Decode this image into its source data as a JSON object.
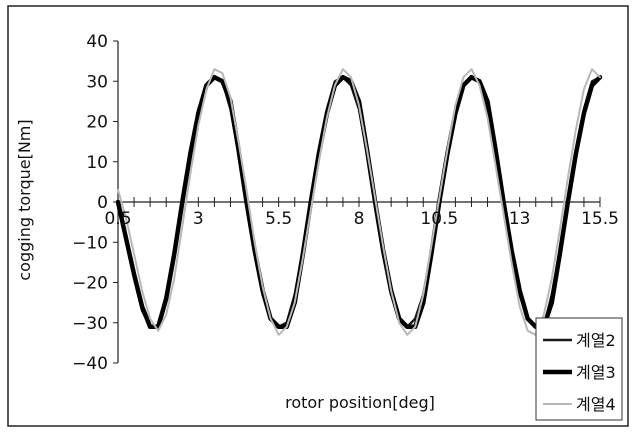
{
  "chart_data": {
    "type": "line",
    "xlabel": "rotor position[deg]",
    "ylabel": "cogging torque[Nm]",
    "xlim": [
      0.5,
      15.5
    ],
    "ylim": [
      -40,
      40
    ],
    "y_ticks": [
      "40",
      "30",
      "20",
      "10",
      "0",
      "-10",
      "-20",
      "-30",
      "-40"
    ],
    "x_tick_labels": [
      "0.5",
      "3",
      "5.5",
      "8",
      "10.5",
      "13",
      "15.5"
    ],
    "grid": false,
    "legend_position": "bottom-right",
    "series": [
      {
        "name": "계열2",
        "color": "#1a1a1a",
        "x": [
          0.5,
          0.75,
          1.0,
          1.25,
          1.5,
          1.75,
          2.0,
          2.25,
          2.5,
          2.75,
          3.0,
          3.25,
          3.5,
          3.75,
          4.0,
          4.25,
          4.5,
          4.75,
          5.0,
          5.25,
          5.5,
          5.75,
          6.0,
          6.25,
          6.5,
          6.75,
          7.0,
          7.25,
          7.5,
          7.75,
          8.0,
          8.25,
          8.5,
          8.75,
          9.0,
          9.25,
          9.5,
          9.75,
          10.0,
          10.25,
          10.5,
          10.75,
          11.0,
          11.25,
          11.5,
          11.75,
          12.0,
          12.25,
          12.5,
          12.75,
          13.0,
          13.25,
          13.5,
          13.75,
          14.0,
          14.25,
          14.5,
          14.75,
          15.0,
          15.25,
          15.5
        ],
        "y": [
          0,
          -9,
          -19,
          -27,
          -31,
          -31,
          -23,
          -12,
          0,
          12,
          23,
          29,
          31,
          30,
          23,
          12,
          0,
          -12,
          -23,
          -29,
          -31,
          -30,
          -23,
          -12,
          0,
          12,
          23,
          30,
          31,
          29,
          23,
          12,
          0,
          -12,
          -23,
          -29,
          -31,
          -29,
          -23,
          -12,
          0,
          12,
          23,
          29,
          31,
          30,
          23,
          12,
          0,
          -12,
          -23,
          -29,
          -31,
          -31,
          -23,
          -12,
          0,
          12,
          23,
          30,
          31
        ]
      },
      {
        "name": "계열3",
        "color": "#000000",
        "x": [
          0.5,
          0.75,
          1.0,
          1.25,
          1.5,
          1.75,
          2.0,
          2.25,
          2.5,
          2.75,
          3.0,
          3.25,
          3.5,
          3.75,
          4.0,
          4.25,
          4.5,
          4.75,
          5.0,
          5.25,
          5.5,
          5.75,
          6.0,
          6.25,
          6.5,
          6.75,
          7.0,
          7.25,
          7.5,
          7.75,
          8.0,
          8.25,
          8.5,
          8.75,
          9.0,
          9.25,
          9.5,
          9.75,
          10.0,
          10.25,
          10.5,
          10.75,
          11.0,
          11.25,
          11.5,
          11.75,
          12.0,
          12.25,
          12.5,
          12.75,
          13.0,
          13.25,
          13.5,
          13.75,
          14.0,
          14.25,
          14.5,
          14.75,
          15.0,
          15.25,
          15.5
        ],
        "y": [
          0,
          -9,
          -18,
          -26,
          -31,
          -31,
          -24,
          -13,
          0,
          12,
          22,
          29,
          31,
          30,
          25,
          13,
          0,
          -12,
          -22,
          -29,
          -31,
          -31,
          -25,
          -13,
          0,
          12,
          22,
          29,
          31,
          30,
          25,
          13,
          0,
          -12,
          -22,
          -29,
          -31,
          -31,
          -25,
          -13,
          0,
          12,
          22,
          29,
          31,
          30,
          25,
          13,
          0,
          -12,
          -22,
          -29,
          -31,
          -31,
          -25,
          -13,
          0,
          12,
          22,
          29,
          31
        ]
      },
      {
        "name": "계열4",
        "color": "#b8b8b8",
        "x": [
          0.5,
          0.75,
          1.0,
          1.25,
          1.5,
          1.75,
          2.0,
          2.25,
          2.5,
          2.75,
          3.0,
          3.25,
          3.5,
          3.75,
          4.0,
          4.25,
          4.5,
          4.75,
          5.0,
          5.25,
          5.5,
          5.75,
          6.0,
          6.25,
          6.5,
          6.75,
          7.0,
          7.25,
          7.5,
          7.75,
          8.0,
          8.25,
          8.5,
          8.75,
          9.0,
          9.25,
          9.5,
          9.75,
          10.0,
          10.25,
          10.5,
          10.75,
          11.0,
          11.25,
          11.5,
          11.75,
          12.0,
          12.25,
          12.5,
          12.75,
          13.0,
          13.25,
          13.5,
          13.75,
          14.0,
          14.25,
          14.5,
          14.75,
          15.0,
          15.25,
          15.5
        ],
        "y": [
          3,
          -4,
          -13,
          -22,
          -29,
          -32,
          -28,
          -19,
          -6,
          7,
          19,
          28,
          33,
          32,
          26,
          15,
          3,
          -10,
          -21,
          -29,
          -33,
          -31,
          -25,
          -14,
          -2,
          10,
          21,
          29,
          33,
          31,
          24,
          13,
          1,
          -11,
          -22,
          -30,
          -33,
          -31,
          -23,
          -11,
          1,
          13,
          24,
          31,
          33,
          29,
          21,
          9,
          -3,
          -15,
          -26,
          -32,
          -33,
          -28,
          -19,
          -7,
          6,
          18,
          28,
          33,
          31
        ]
      }
    ]
  }
}
